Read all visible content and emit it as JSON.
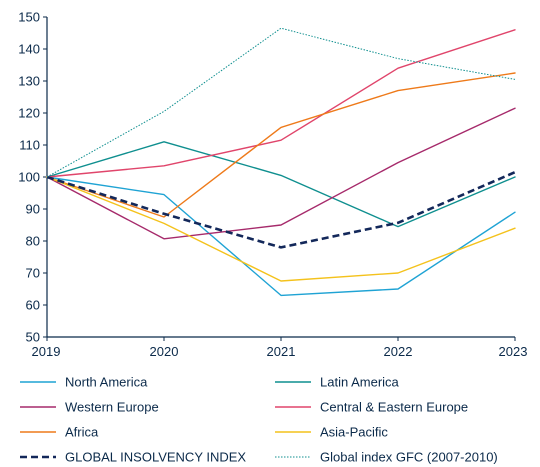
{
  "chart_data": {
    "type": "line",
    "title": "",
    "xlabel": "",
    "ylabel": "",
    "x": [
      "2019",
      "2020",
      "2021",
      "2022",
      "2023"
    ],
    "ylim": [
      50,
      150
    ],
    "yticks": [
      50,
      60,
      70,
      80,
      90,
      100,
      110,
      120,
      130,
      140,
      150
    ],
    "grid": false,
    "legend_position": "bottom",
    "series": [
      {
        "name": "North America",
        "values": [
          100,
          94.5,
          63,
          65,
          89
        ],
        "color": "#1fa3d4",
        "style": "solid"
      },
      {
        "name": "Latin America",
        "values": [
          100,
          111,
          100.5,
          84.5,
          100
        ],
        "color": "#0f8f8f",
        "style": "solid"
      },
      {
        "name": "Western Europe",
        "values": [
          100,
          80.7,
          85,
          104.5,
          121.5
        ],
        "color": "#a62a6b",
        "style": "solid"
      },
      {
        "name": "Central & Eastern Europe",
        "values": [
          100,
          103.5,
          111.5,
          134,
          146
        ],
        "color": "#e0456b",
        "style": "solid"
      },
      {
        "name": "Africa",
        "values": [
          100,
          87.5,
          115.5,
          127,
          132.5
        ],
        "color": "#ee7a1a",
        "style": "solid"
      },
      {
        "name": "Asia-Pacific",
        "values": [
          100,
          85.5,
          67.5,
          70,
          84
        ],
        "color": "#f4c21c",
        "style": "solid"
      },
      {
        "name": "GLOBAL INSOLVENCY INDEX",
        "values": [
          100,
          88.5,
          78,
          85.7,
          101.5
        ],
        "color": "#13285a",
        "style": "dashed"
      },
      {
        "name": "Global index GFC (2007-2010)",
        "values": [
          100,
          120.5,
          146.5,
          137,
          130.5
        ],
        "color": "#0f8f8f",
        "style": "dotted"
      }
    ]
  }
}
